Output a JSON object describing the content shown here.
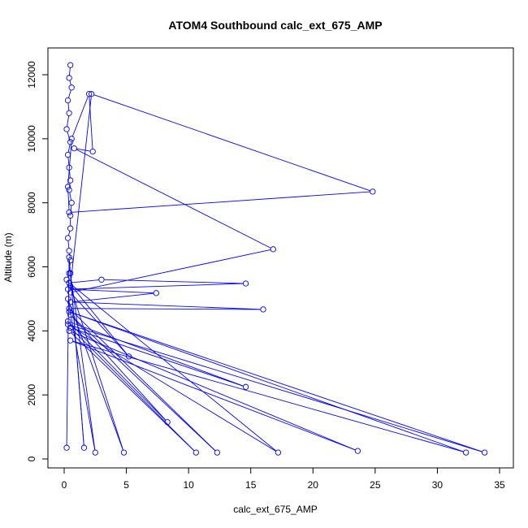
{
  "chart_data": {
    "type": "line",
    "title": "ATOM4 Southbound calc_ext_675_AMP",
    "xlabel": "calc_ext_675_AMP",
    "ylabel": "Altitude (m)",
    "xlim": [
      0,
      35
    ],
    "ylim": [
      0,
      12000
    ],
    "xticks": [
      0,
      5,
      10,
      15,
      20,
      25,
      30,
      35
    ],
    "yticks": [
      0,
      2000,
      4000,
      6000,
      8000,
      10000,
      12000
    ],
    "xtick_labels": [
      "0",
      "5",
      "10",
      "15",
      "20",
      "25",
      "30",
      "35"
    ],
    "ytick_labels": [
      "0",
      "2000",
      "4000",
      "6000",
      "8000",
      "10000",
      "12000"
    ],
    "grid": false,
    "series_color": "#0000ff",
    "series": [
      {
        "marker": "open-circle",
        "x": [
          0.5,
          0.4,
          0.6,
          0.3,
          0.4,
          0.2,
          0.5,
          0.3,
          0.4,
          0.5,
          0.4,
          0.6,
          0.5,
          0.5,
          0.3,
          0.4,
          0.5,
          0.4,
          0.2,
          0.5,
          2.2,
          24.8,
          0.4,
          0.3,
          0.6,
          2.0,
          2.3,
          0.8,
          16.8,
          0.5,
          5.2,
          0.4,
          3.0,
          14.6,
          0.3,
          7.4,
          0.5,
          16.0,
          0.4,
          12.3,
          0.5,
          8.3,
          0.3,
          14.6,
          0.5,
          10.6,
          0.4,
          23.6,
          0.5,
          32.3,
          0.4,
          33.8,
          0.3,
          17.2,
          0.4,
          4.8,
          0.3,
          2.5,
          0.5,
          1.6,
          0.4,
          0.2
        ],
        "y": [
          12300,
          11900,
          11600,
          11200,
          10800,
          10300,
          9900,
          9500,
          9100,
          8700,
          8400,
          8000,
          7600,
          7200,
          6900,
          6500,
          6200,
          5800,
          5600,
          5400,
          11400,
          8350,
          7700,
          8500,
          10000,
          11400,
          9600,
          9700,
          6550,
          5200,
          3200,
          5500,
          5600,
          5480,
          5300,
          5180,
          4900,
          4670,
          4700,
          200,
          4500,
          1150,
          4300,
          2250,
          4100,
          200,
          4000,
          250,
          3700,
          200,
          4600,
          200,
          4200,
          200,
          5500,
          200,
          5000,
          200,
          5800,
          350,
          6300,
          350
        ]
      }
    ]
  }
}
